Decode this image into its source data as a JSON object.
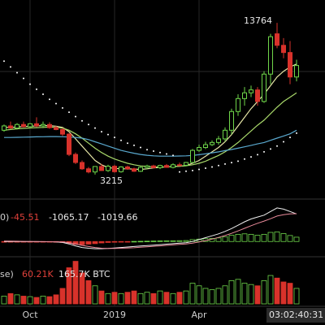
{
  "chart_data": {
    "type": "candlestick",
    "ylim": [
      1800,
      15350
    ],
    "xticks": [
      {
        "value": 4,
        "label": "Oct"
      },
      {
        "value": 17,
        "label": "2019"
      },
      {
        "value": 30,
        "label": "Apr"
      }
    ],
    "up_color": "#6fd64a",
    "down_color": "#d8322b",
    "open": [
      6300,
      6600,
      6450,
      6700,
      6550,
      6750,
      6600,
      6700,
      6480,
      6350,
      6030,
      4620,
      4060,
      3620,
      3400,
      3780,
      3500,
      3800,
      3420,
      3750,
      3620,
      3450,
      3720,
      3820,
      3700,
      3850,
      3720,
      3900,
      3870,
      4060,
      4900,
      5100,
      5300,
      5450,
      5700,
      6300,
      7600,
      8500,
      8900,
      9100,
      8300,
      10200,
      13000,
      12200,
      11700,
      10000
    ],
    "high": [
      6700,
      6900,
      6800,
      6900,
      6800,
      7200,
      6900,
      6850,
      6600,
      6450,
      6100,
      4750,
      4200,
      3750,
      3800,
      3950,
      3900,
      3900,
      3800,
      3850,
      3700,
      3800,
      3900,
      3900,
      3900,
      3950,
      4000,
      4050,
      4100,
      5000,
      5300,
      5500,
      5600,
      5900,
      6500,
      7800,
      8800,
      9300,
      9400,
      9300,
      10400,
      13000,
      13764,
      12700,
      12500,
      11200
    ],
    "low": [
      6200,
      6400,
      6350,
      6500,
      6450,
      6500,
      6450,
      6400,
      6300,
      5900,
      4500,
      3950,
      3550,
      3300,
      3215,
      3600,
      3400,
      3350,
      3350,
      3550,
      3400,
      3400,
      3600,
      3650,
      3600,
      3700,
      3650,
      3800,
      3800,
      4000,
      4800,
      5000,
      5200,
      5300,
      5500,
      6000,
      7300,
      8000,
      8600,
      8000,
      8200,
      9500,
      12000,
      11300,
      9500,
      9700
    ],
    "close": [
      6600,
      6450,
      6700,
      6550,
      6750,
      6600,
      6700,
      6480,
      6350,
      6030,
      4620,
      4060,
      3620,
      3400,
      3780,
      3500,
      3800,
      3420,
      3750,
      3620,
      3450,
      3720,
      3820,
      3700,
      3850,
      3720,
      3900,
      3870,
      4060,
      4900,
      5100,
      5300,
      5450,
      5700,
      6300,
      7600,
      8500,
      8900,
      9100,
      8300,
      10200,
      12800,
      12200,
      11700,
      10000,
      10800
    ],
    "annotations": [
      13764,
      3215
    ],
    "series": [
      {
        "color": "#e6e6a6",
        "values": [
          6500,
          6500,
          6520,
          6560,
          6580,
          6600,
          6620,
          6620,
          6580,
          6500,
          6200,
          5700,
          5200,
          4700,
          4200,
          3900,
          3700,
          3650,
          3620,
          3620,
          3600,
          3580,
          3620,
          3680,
          3720,
          3760,
          3780,
          3800,
          3850,
          4000,
          4200,
          4500,
          4800,
          5100,
          5500,
          6000,
          6600,
          7200,
          7800,
          8300,
          8800,
          9400,
          10000,
          10400,
          10700,
          10900
        ]
      },
      {
        "color": "#a8d86a",
        "values": [
          6300,
          6350,
          6400,
          6430,
          6460,
          6480,
          6500,
          6520,
          6500,
          6450,
          6300,
          6050,
          5750,
          5400,
          5050,
          4750,
          4500,
          4300,
          4150,
          4000,
          3900,
          3820,
          3780,
          3760,
          3750,
          3760,
          3780,
          3800,
          3830,
          3900,
          4000,
          4150,
          4350,
          4550,
          4800,
          5100,
          5450,
          5850,
          6250,
          6650,
          7000,
          7450,
          7900,
          8300,
          8600,
          8900
        ]
      },
      {
        "color": "#5aa9cf",
        "values": [
          5800,
          5800,
          5810,
          5820,
          5830,
          5840,
          5850,
          5860,
          5860,
          5850,
          5830,
          5800,
          5750,
          5650,
          5500,
          5350,
          5200,
          5050,
          4900,
          4800,
          4700,
          4620,
          4560,
          4520,
          4500,
          4500,
          4500,
          4510,
          4520,
          4550,
          4600,
          4660,
          4730,
          4800,
          4880,
          4960,
          5050,
          5150,
          5250,
          5350,
          5450,
          5600,
          5750,
          5900,
          6050,
          6300
        ]
      }
    ],
    "sar": {
      "color": "#ffffff",
      "values": [
        11100,
        10700,
        10300,
        9900,
        9500,
        9150,
        8800,
        8450,
        8150,
        7850,
        7550,
        7250,
        6950,
        6700,
        6450,
        6200,
        6000,
        5800,
        5600,
        5400,
        5250,
        5100,
        4950,
        4850,
        4750,
        4650,
        4550,
        3400,
        3450,
        3500,
        3580,
        3660,
        3750,
        3850,
        3950,
        4050,
        4150,
        4300,
        4450,
        4600,
        4800,
        5000,
        5200,
        5500,
        5800,
        6100
      ]
    },
    "macd": {
      "labels": [
        "0)",
        -45.51,
        -1065.17,
        -1019.66
      ],
      "ylim": [
        -500,
        1600
      ],
      "histogram": [
        -30,
        -20,
        -10,
        -15,
        -20,
        -10,
        -15,
        -20,
        -30,
        -40,
        -80,
        -120,
        -130,
        -110,
        -90,
        -60,
        -40,
        -30,
        -20,
        -10,
        5,
        10,
        15,
        20,
        25,
        30,
        30,
        35,
        40,
        80,
        100,
        120,
        130,
        150,
        200,
        260,
        300,
        320,
        300,
        260,
        300,
        380,
        400,
        330,
        250,
        180
      ],
      "lines": [
        {
          "color": "#f0f0f0",
          "values": [
            0,
            0,
            0,
            -5,
            -5,
            -5,
            -10,
            -10,
            -20,
            -40,
            -100,
            -180,
            -250,
            -280,
            -300,
            -300,
            -290,
            -270,
            -250,
            -230,
            -210,
            -190,
            -170,
            -150,
            -130,
            -110,
            -90,
            -70,
            -50,
            0,
            80,
            160,
            240,
            320,
            420,
            540,
            680,
            820,
            940,
            1020,
            1100,
            1250,
            1400,
            1350,
            1250,
            1150
          ]
        },
        {
          "color": "#e88a9a",
          "values": [
            20,
            15,
            10,
            5,
            0,
            -5,
            -5,
            -8,
            -10,
            -20,
            -50,
            -100,
            -160,
            -210,
            -250,
            -280,
            -290,
            -290,
            -280,
            -270,
            -260,
            -240,
            -220,
            -200,
            -180,
            -160,
            -140,
            -120,
            -100,
            -70,
            -20,
            40,
            100,
            170,
            250,
            340,
            440,
            550,
            660,
            760,
            850,
            950,
            1060,
            1120,
            1150,
            1160
          ]
        }
      ]
    },
    "volume": {
      "labels": [
        "se)",
        "60.21K",
        "165.7K BTC"
      ],
      "ylim": [
        0,
        170
      ],
      "values": [
        30,
        40,
        35,
        30,
        28,
        25,
        30,
        28,
        35,
        60,
        140,
        165,
        120,
        90,
        70,
        50,
        40,
        45,
        40,
        45,
        50,
        40,
        45,
        40,
        50,
        45,
        40,
        45,
        50,
        80,
        70,
        60,
        55,
        60,
        70,
        90,
        95,
        80,
        75,
        70,
        90,
        110,
        100,
        85,
        80,
        60
      ]
    },
    "timer": "03:02:40:31"
  }
}
